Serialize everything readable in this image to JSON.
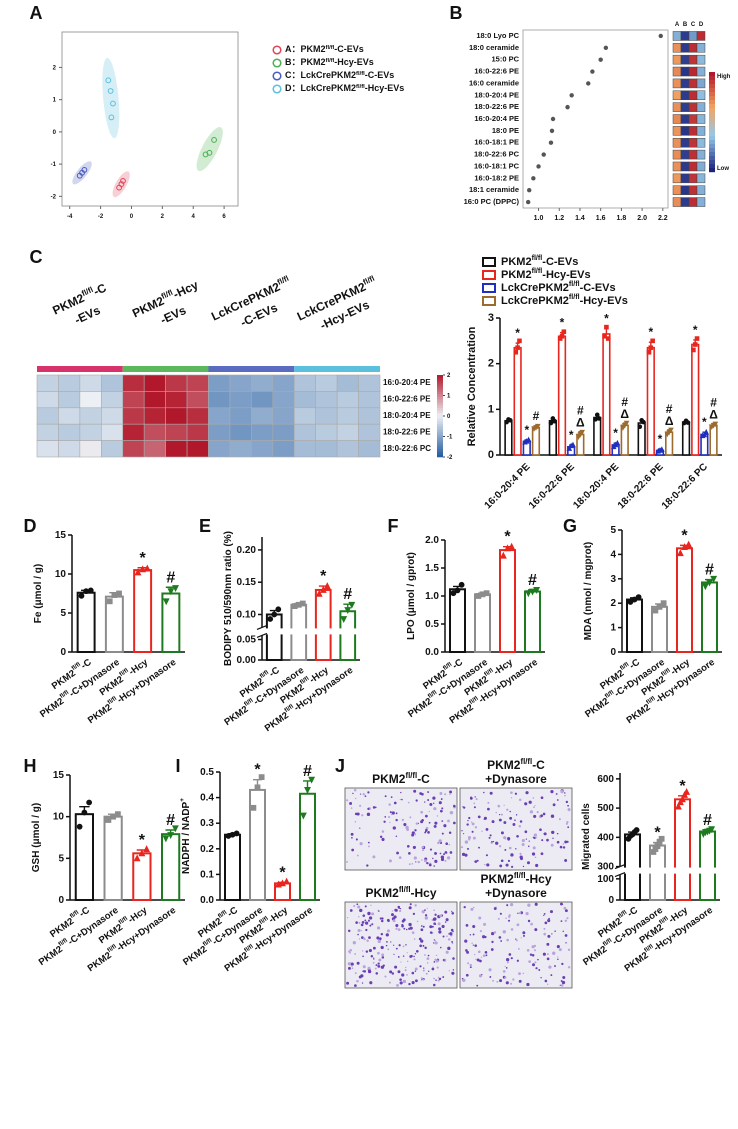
{
  "chart_data": [
    {
      "type": "scatter",
      "panel": "A",
      "xlim": [
        -4.5,
        6.9
      ],
      "ylim": [
        -2.3,
        3.1
      ],
      "xticks": [
        -4,
        -2,
        0,
        2,
        4,
        6
      ],
      "yticks": [
        -2,
        -1,
        0,
        1,
        2
      ],
      "series": [
        {
          "name": "A：PKM2fl/fl-C-EVs",
          "color": "#e0455a",
          "x": [
            -0.8,
            -0.65,
            -0.55
          ],
          "y": [
            -1.73,
            -1.62,
            -1.52
          ]
        },
        {
          "name": "B：PKM2fl/fl-Hcy-EVs",
          "color": "#4caf50",
          "x": [
            4.8,
            5.05,
            5.35
          ],
          "y": [
            -0.7,
            -0.65,
            -0.25
          ]
        },
        {
          "name": "C：LckCrePKM2fl/fl-C-EVs",
          "color": "#4a5bbf",
          "x": [
            -3.35,
            -3.2,
            -3.05
          ],
          "y": [
            -1.36,
            -1.27,
            -1.18
          ]
        },
        {
          "name": "D：LckCrePKM2fl/fl-Hcy-EVs",
          "color": "#5bc0de",
          "x": [
            -1.5,
            -1.35,
            -1.2,
            -1.3
          ],
          "y": [
            1.6,
            1.27,
            0.88,
            0.45
          ]
        }
      ]
    },
    {
      "type": "dot",
      "panel": "B",
      "xlim": [
        0.85,
        2.25
      ],
      "xticks": [
        {
          "value": 1,
          "label": "1.0"
        },
        1.2,
        1.4,
        1.6,
        1.8,
        {
          "value": 2,
          "label": "2.0"
        },
        2.2
      ],
      "categories": [
        "18:0 Lyo PC",
        "18:0 ceramide",
        "15:0  PC",
        "16:0-22:6 PE",
        "16:0 ceramide",
        "18:0-20:4 PE",
        "18:0-22:6 PE",
        "16:0-20:4 PE",
        "18:0  PE",
        "16:0-18:1 PE",
        "18:0-22:6 PC",
        "16:0-18:1 PC",
        "16:0-18:2 PE",
        "18:1 ceramide",
        "16:0  PC (DPPC)"
      ],
      "values": [
        2.18,
        1.65,
        1.6,
        1.52,
        1.48,
        1.32,
        1.28,
        1.14,
        1.13,
        1.12,
        1.05,
        1.0,
        0.95,
        0.91,
        0.9
      ],
      "heat": {
        "columns": [
          "A",
          "B",
          "C",
          "D"
        ],
        "high": "High",
        "low": "Low",
        "values": [
          [
            0.3,
            0.05,
            0.25,
            0.95
          ],
          [
            0.7,
            0.05,
            0.95,
            0.3
          ],
          [
            0.68,
            0.06,
            0.93,
            0.32
          ],
          [
            0.72,
            0.04,
            0.96,
            0.3
          ],
          [
            0.7,
            0.05,
            0.94,
            0.28
          ],
          [
            0.66,
            0.05,
            0.95,
            0.33
          ],
          [
            0.7,
            0.06,
            0.94,
            0.3
          ],
          [
            0.72,
            0.05,
            0.92,
            0.31
          ],
          [
            0.69,
            0.04,
            0.95,
            0.3
          ],
          [
            0.7,
            0.05,
            0.93,
            0.32
          ],
          [
            0.71,
            0.06,
            0.94,
            0.3
          ],
          [
            0.7,
            0.05,
            0.95,
            0.29
          ],
          [
            0.68,
            0.05,
            0.93,
            0.31
          ],
          [
            0.7,
            0.04,
            0.94,
            0.3
          ],
          [
            0.71,
            0.05,
            0.95,
            0.3
          ]
        ]
      }
    },
    {
      "type": "heatmap",
      "panel": "C",
      "groups": [
        {
          "label": [
            "PKM2fl/fl-C",
            "-EVs"
          ],
          "color": "#d6336c"
        },
        {
          "label": [
            "PKM2fl/fl-Hcy",
            "-EVs"
          ],
          "color": "#5cb85c"
        },
        {
          "label": [
            "LckCrePKM2fl/fl",
            "-C-EVs"
          ],
          "color": "#5b6bbf"
        },
        {
          "label": [
            "LckCrePKM2fl/fl",
            "-Hcy-EVs"
          ],
          "color": "#5bc0de"
        }
      ],
      "rows": [
        "16:0-20:4 PE",
        "16:0-22:6 PE",
        "18:0-20:4 PE",
        "18:0-22:6 PE",
        "18:0-22:6 PC"
      ],
      "values": [
        [
          -0.4,
          -0.5,
          -0.3,
          -0.6,
          1.8,
          2.3,
          1.7,
          1.6,
          -1.1,
          -1.0,
          -0.9,
          -1.0,
          -0.6,
          -0.5,
          -0.7,
          -0.6
        ],
        [
          -0.3,
          -0.5,
          0.0,
          -0.4,
          1.6,
          2.0,
          1.9,
          1.5,
          -1.2,
          -1.1,
          -1.2,
          -1.0,
          -0.7,
          -0.6,
          -0.5,
          -0.6
        ],
        [
          -0.5,
          -0.3,
          -0.4,
          -0.3,
          1.7,
          1.9,
          2.1,
          1.8,
          -1.0,
          -1.1,
          -0.9,
          -1.0,
          -0.5,
          -0.6,
          -0.5,
          -0.6
        ],
        [
          -0.4,
          -0.5,
          -0.4,
          -0.2,
          1.9,
          1.5,
          1.6,
          1.7,
          -1.1,
          -1.2,
          -1.1,
          -1.1,
          -0.6,
          -0.5,
          -0.4,
          -0.6
        ],
        [
          -0.2,
          -0.3,
          0.05,
          -0.5,
          1.6,
          1.3,
          2.0,
          2.4,
          -1.0,
          -0.9,
          -1.0,
          -1.1,
          -0.7,
          -0.7,
          -0.6,
          -0.7
        ]
      ],
      "clim": [
        -2,
        2
      ],
      "cticks": [
        2,
        1,
        0,
        -1,
        -2
      ]
    },
    {
      "type": "bar",
      "ylabel": "Relative Concentration",
      "ylim": [
        0,
        3
      ],
      "yticks": [
        0,
        1,
        2,
        3
      ],
      "categories": [
        "16:0-20:4 PE",
        "16:0-22:6 PE",
        "18:0-20:4 PE",
        "18:0-22:6 PE",
        "18:0-22:6 PC"
      ],
      "series": [
        {
          "name": "PKM2fl/fl-C-EVs",
          "color": "#111111",
          "values": [
            0.75,
            0.75,
            0.82,
            0.7,
            0.72
          ],
          "errors": [
            0.04,
            0.05,
            0.06,
            0.06,
            0.04
          ],
          "points": [
            [
              0.72,
              0.78,
              0.76
            ],
            [
              0.7,
              0.8,
              0.74
            ],
            [
              0.78,
              0.88,
              0.8
            ],
            [
              0.62,
              0.76,
              0.72
            ],
            [
              0.7,
              0.75,
              0.71
            ]
          ],
          "markers": [
            null,
            null,
            null,
            null,
            null
          ]
        },
        {
          "name": "PKM2fl/fl-Hcy-EVs",
          "color": "#e8261f",
          "values": [
            2.35,
            2.6,
            2.65,
            2.35,
            2.42
          ],
          "errors": [
            0.1,
            0.08,
            0.12,
            0.12,
            0.1
          ],
          "points": [
            [
              2.25,
              2.35,
              2.5
            ],
            [
              2.55,
              2.6,
              2.7
            ],
            [
              2.6,
              2.8,
              2.55
            ],
            [
              2.25,
              2.35,
              2.5
            ],
            [
              2.3,
              2.42,
              2.55
            ]
          ],
          "markers": [
            "*",
            "*",
            "*",
            "*",
            "*"
          ]
        },
        {
          "name": "LckCrePKM2fl/fl-C-EVs",
          "color": "#1f2fbf",
          "values": [
            0.3,
            0.18,
            0.22,
            0.1,
            0.45
          ],
          "errors": [
            0.03,
            0.04,
            0.04,
            0.03,
            0.05
          ],
          "points": [
            [
              0.28,
              0.3,
              0.33
            ],
            [
              0.14,
              0.2,
              0.22
            ],
            [
              0.18,
              0.22,
              0.26
            ],
            [
              0.08,
              0.1,
              0.12
            ],
            [
              0.42,
              0.44,
              0.5
            ]
          ],
          "markers": [
            "*",
            "*",
            "*",
            "*",
            "*"
          ]
        },
        {
          "name": "LckCrePKM2fl/fl-Hcy-EVs",
          "color": "#9c6b2e",
          "values": [
            0.6,
            0.45,
            0.65,
            0.5,
            0.65
          ],
          "errors": [
            0.04,
            0.06,
            0.05,
            0.05,
            0.04
          ],
          "points": [
            [
              0.58,
              0.6,
              0.63
            ],
            [
              0.4,
              0.45,
              0.5
            ],
            [
              0.6,
              0.65,
              0.7
            ],
            [
              0.46,
              0.5,
              0.55
            ],
            [
              0.62,
              0.65,
              0.68
            ]
          ],
          "markers": [
            "#",
            "#Δ",
            "#Δ",
            "#Δ",
            "#Δ"
          ]
        }
      ]
    },
    {
      "type": "bar",
      "panel": "D",
      "ylabel": "Fe (μmol / g)",
      "ylim": [
        0,
        15
      ],
      "yticks": [
        0,
        5,
        10,
        15
      ],
      "categories": [
        "PKM2fl/fl-C",
        "PKM2fl/fl-C+Dynasore",
        "PKM2fl/fl-Hcy",
        "PKM2fl/fl-Hcy+Dynasore"
      ],
      "colors": [
        "#111111",
        "#8c8c8c",
        "#e8261f",
        "#1e7a1e"
      ],
      "values": [
        7.6,
        7.1,
        10.5,
        7.5
      ],
      "errors": [
        0.3,
        0.5,
        0.3,
        0.8
      ],
      "points": [
        [
          7.2,
          7.8,
          7.9
        ],
        [
          6.5,
          7.3,
          7.5
        ],
        [
          10.2,
          10.6,
          10.7
        ],
        [
          6.5,
          7.8,
          8.2
        ]
      ],
      "markers": [
        null,
        null,
        "*",
        "#"
      ]
    },
    {
      "type": "bar",
      "panel": "E",
      "ylabel": "BODIPY 510/590nm ratio (%)",
      "ysegments": [
        {
          "ylim": [
            0,
            0.06
          ],
          "yticks": [
            {
              "value": 0,
              "label": "0.00"
            },
            0.05
          ]
        },
        {
          "ylim": [
            0.08,
            0.22
          ],
          "yticks": [
            {
              "value": 0.1,
              "label": "0.10"
            },
            0.15,
            {
              "value": 0.2,
              "label": "0.20"
            }
          ]
        }
      ],
      "categories": [
        "PKM2fl/fl-C",
        "PKM2fl/fl-C+Dynasore",
        "PKM2fl/fl-Hcy",
        "PKM2fl/fl-Hcy+Dynasore"
      ],
      "colors": [
        "#111111",
        "#8c8c8c",
        "#e8261f",
        "#1e7a1e"
      ],
      "values": [
        0.1,
        0.115,
        0.138,
        0.105
      ],
      "errors": [
        0.006,
        0.002,
        0.006,
        0.011
      ],
      "points": [
        [
          0.093,
          0.1,
          0.108
        ],
        [
          0.113,
          0.115,
          0.117
        ],
        [
          0.132,
          0.138,
          0.144
        ],
        [
          0.093,
          0.107,
          0.115
        ]
      ],
      "markers": [
        null,
        null,
        "*",
        "#"
      ]
    },
    {
      "type": "bar",
      "panel": "F",
      "ylabel": "LPO (μmol / gprot)",
      "ylim": [
        0,
        2
      ],
      "yticks": [
        {
          "value": 0,
          "label": "0.0"
        },
        0.5,
        {
          "value": 1,
          "label": "1.0"
        },
        1.5,
        {
          "value": 2,
          "label": "2.0"
        }
      ],
      "categories": [
        "PKM2fl/fl-C",
        "PKM2fl/fl-C+Dynasore",
        "PKM2fl/fl-Hcy",
        "PKM2fl/fl-Hcy+Dynasore"
      ],
      "colors": [
        "#111111",
        "#8c8c8c",
        "#e8261f",
        "#1e7a1e"
      ],
      "values": [
        1.12,
        1.03,
        1.82,
        1.08
      ],
      "errors": [
        0.05,
        0.02,
        0.06,
        0.03
      ],
      "points": [
        [
          1.05,
          1.1,
          1.2
        ],
        [
          1.0,
          1.03,
          1.05
        ],
        [
          1.72,
          1.85,
          1.88
        ],
        [
          1.05,
          1.08,
          1.11
        ]
      ],
      "markers": [
        null,
        null,
        "*",
        "#"
      ]
    },
    {
      "type": "bar",
      "panel": "G",
      "ylabel": "MDA (nmol / mgprot)",
      "ylim": [
        0,
        5
      ],
      "yticks": [
        0,
        1,
        2,
        3,
        4,
        5
      ],
      "categories": [
        "PKM2fl/fl-C",
        "PKM2fl/fl-C+Dynasore",
        "PKM2fl/fl-Hcy",
        "PKM2fl/fl-Hcy+Dynasore"
      ],
      "colors": [
        "#111111",
        "#8c8c8c",
        "#e8261f",
        "#1e7a1e"
      ],
      "values": [
        2.15,
        1.85,
        4.25,
        2.85
      ],
      "errors": [
        0.07,
        0.12,
        0.12,
        0.12
      ],
      "points": [
        [
          2.05,
          2.15,
          2.25
        ],
        [
          1.7,
          1.85,
          2.0
        ],
        [
          4.05,
          4.3,
          4.4
        ],
        [
          2.7,
          2.85,
          3.0
        ]
      ],
      "markers": [
        null,
        null,
        "*",
        "#"
      ]
    },
    {
      "type": "bar",
      "panel": "H",
      "ylabel": "GSH (μmol / g)",
      "ylim": [
        0,
        15
      ],
      "yticks": [
        0,
        5,
        10,
        15
      ],
      "categories": [
        "PKM2fl/fl-C",
        "PKM2fl/fl-C+Dynasore",
        "PKM2fl/fl-Hcy",
        "PKM2fl/fl-Hcy+Dynasore"
      ],
      "colors": [
        "#111111",
        "#8c8c8c",
        "#e8261f",
        "#1e7a1e"
      ],
      "values": [
        10.3,
        10.0,
        5.6,
        7.9
      ],
      "errors": [
        0.9,
        0.3,
        0.4,
        0.5
      ],
      "points": [
        [
          8.8,
          10.5,
          11.7
        ],
        [
          9.6,
          10.0,
          10.3
        ],
        [
          5.0,
          5.6,
          6.1
        ],
        [
          7.4,
          7.8,
          8.6
        ]
      ],
      "markers": [
        null,
        null,
        "*",
        "#"
      ]
    },
    {
      "type": "bar",
      "panel": "I",
      "ylabel": "NADPH / NADP+",
      "ylim": [
        0,
        0.5
      ],
      "yticks": [
        {
          "value": 0,
          "label": "0.0"
        },
        0.1,
        0.2,
        0.3,
        0.4,
        0.5
      ],
      "categories": [
        "PKM2fl/fl-C",
        "PKM2fl/fl-C+Dynasore",
        "PKM2fl/fl-Hcy",
        "PKM2fl/fl-Hcy+Dynasore"
      ],
      "colors": [
        "#111111",
        "#8c8c8c",
        "#e8261f",
        "#1e7a1e"
      ],
      "values": [
        0.255,
        0.43,
        0.065,
        0.415
      ],
      "errors": [
        0.004,
        0.04,
        0.004,
        0.05
      ],
      "points": [
        [
          0.25,
          0.255,
          0.26
        ],
        [
          0.36,
          0.44,
          0.48
        ],
        [
          0.06,
          0.065,
          0.072
        ],
        [
          0.33,
          0.43,
          0.47
        ]
      ],
      "markers": [
        null,
        "*",
        "*",
        "#"
      ]
    },
    {
      "type": "bar",
      "panel": "J",
      "ylabel": "Migrated cells",
      "ysegments": [
        {
          "ylim": [
            0,
            120
          ],
          "yticks": [
            0,
            100
          ]
        },
        {
          "ylim": [
            300,
            620
          ],
          "yticks": [
            300,
            400,
            500,
            600
          ]
        }
      ],
      "image_labels": [
        [
          "PKM2fl/fl-C"
        ],
        [
          "PKM2fl/fl-C",
          "+Dynasore"
        ],
        [
          "PKM2fl/fl-Hcy"
        ],
        [
          "PKM2fl/fl-Hcy",
          "+Dynasore"
        ]
      ],
      "categories": [
        "PKM2fl/fl-C",
        "PKM2fl/fl-C+Dynasore",
        "PKM2fl/fl-Hcy",
        "PKM2fl/fl-Hcy+Dynasore"
      ],
      "colors": [
        "#111111",
        "#8c8c8c",
        "#e8261f",
        "#1e7a1e"
      ],
      "values": [
        410,
        372,
        530,
        420
      ],
      "errors": [
        8,
        10,
        12,
        5
      ],
      "points": [
        [
          395,
          405,
          410,
          418,
          425
        ],
        [
          350,
          360,
          370,
          385,
          395
        ],
        [
          505,
          520,
          530,
          545,
          555
        ],
        [
          412,
          418,
          420,
          423,
          428
        ]
      ],
      "markers": [
        null,
        "*",
        "*",
        "#"
      ]
    }
  ]
}
